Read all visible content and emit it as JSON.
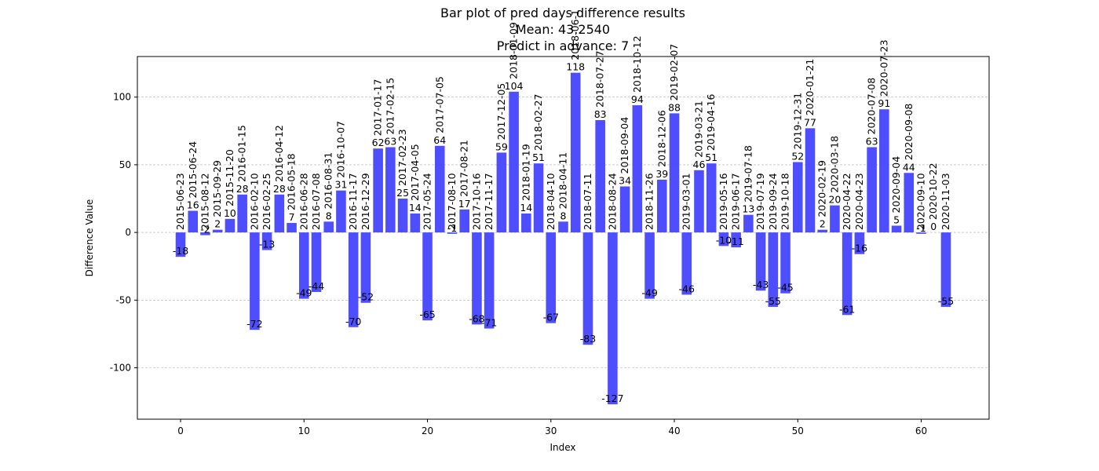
{
  "chart_data": {
    "type": "bar",
    "title_lines": [
      "Bar plot of pred days difference results",
      "Mean: 43.2540",
      "Predict in advance: 7"
    ],
    "xlabel": "Index",
    "ylabel": "Difference Value",
    "xlim": [
      -3.5,
      65.5
    ],
    "ylim": [
      -138,
      130
    ],
    "xticks": [
      0,
      10,
      20,
      30,
      40,
      50,
      60
    ],
    "yticks": [
      -100,
      -50,
      0,
      50,
      100
    ],
    "grid": {
      "y": true,
      "x": false,
      "style": "dashed"
    },
    "bar_color": "#4444ff",
    "x": [
      0,
      1,
      2,
      3,
      4,
      5,
      6,
      7,
      8,
      9,
      10,
      11,
      12,
      13,
      14,
      15,
      16,
      17,
      18,
      19,
      20,
      21,
      22,
      23,
      24,
      25,
      26,
      27,
      28,
      29,
      30,
      31,
      32,
      33,
      34,
      35,
      36,
      37,
      38,
      39,
      40,
      41,
      42,
      43,
      44,
      45,
      46,
      47,
      48,
      49,
      50,
      51,
      52,
      53,
      54,
      55,
      56,
      57,
      58,
      59,
      60,
      61,
      62
    ],
    "values": [
      -18,
      16,
      -2,
      2,
      10,
      28,
      -72,
      -13,
      28,
      7,
      -49,
      -44,
      8,
      31,
      -70,
      -52,
      62,
      63,
      25,
      14,
      -65,
      64,
      -1,
      17,
      -68,
      -71,
      59,
      104,
      14,
      51,
      -67,
      8,
      118,
      -83,
      83,
      -127,
      34,
      94,
      -49,
      39,
      88,
      -46,
      46,
      51,
      -10,
      -11,
      13,
      -43,
      -55,
      -45,
      52,
      77,
      2,
      20,
      -61,
      -16,
      63,
      91,
      5,
      44,
      -1,
      0,
      -55
    ],
    "dates": [
      "2015-06-23",
      "2015-06-24",
      "2015-08-12",
      "2015-09-29",
      "2015-11-20",
      "2016-01-15",
      "2016-02-10",
      "2016-02-25",
      "2016-04-12",
      "2016-05-18",
      "2016-06-28",
      "2016-07-08",
      "2016-08-31",
      "2016-10-07",
      "2016-11-17",
      "2016-12-29",
      "2017-01-17",
      "2017-02-15",
      "2017-02-23",
      "2017-04-05",
      "2017-05-24",
      "2017-07-05",
      "2017-08-10",
      "2017-08-21",
      "2017-10-16",
      "2017-11-17",
      "2017-12-05",
      "2018-01-09",
      "2018-01-19",
      "2018-02-27",
      "2018-04-10",
      "2018-04-11",
      "2018-06-1",
      "2018-07-11",
      "2018-07-27",
      "2018-08-24",
      "2018-09-04",
      "2018-10-12",
      "2018-11-26",
      "2018-12-06",
      "2019-02-07",
      "2019-03-01",
      "2019-03-21",
      "2019-04-16",
      "2019-05-16",
      "2019-06-17",
      "2019-07-18",
      "2019-07-19",
      "2019-09-24",
      "2019-10-18",
      "2019-12-31",
      "2020-01-21",
      "2020-02-19",
      "2020-03-18",
      "2020-04-22",
      "2020-04-23",
      "2020-07-08",
      "2020-07-23",
      "2020-09-04",
      "2020-09-08",
      "2020-09-10",
      "2020-10-22",
      "2020-11-03"
    ]
  }
}
